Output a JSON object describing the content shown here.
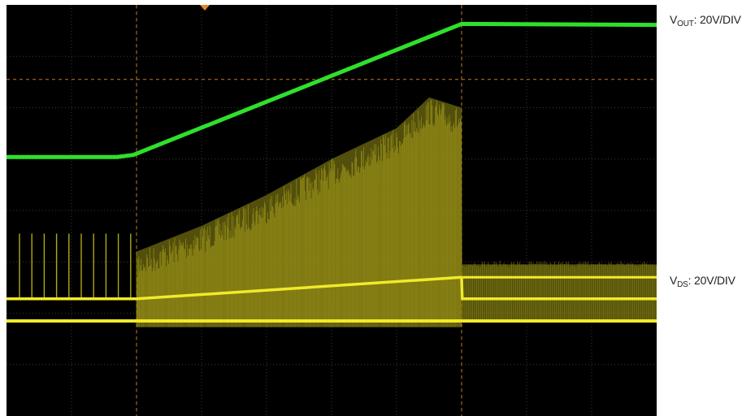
{
  "labels": {
    "vout": {
      "name": "V",
      "sub": "OUT",
      "scale": ": 20V/DIV"
    },
    "vds": {
      "name": "V",
      "sub": "DS",
      "scale": ": 20V/DIV"
    }
  },
  "colors": {
    "background": "#000000",
    "grid": "#3a3a3a",
    "cursor": "#c8791e",
    "trigger_marker": "#e08a2a",
    "vout_trace": "#2fe02a",
    "vds_trace": "#f0ea2a",
    "vds_envelope": "#6e6a10"
  },
  "chart_data": {
    "type": "line",
    "grid": {
      "x_divisions": 10,
      "y_divisions": 8,
      "on": true
    },
    "vertical_scale": "20V/DIV",
    "x_range": [
      0,
      10
    ],
    "y_range": [
      0,
      8
    ],
    "cursors": {
      "vertical_div": [
        2.0,
        7.0
      ],
      "horizontal_div": [
        6.55,
        1.85
      ]
    },
    "trigger_marker_div": 3.05,
    "series": [
      {
        "name": "VOUT",
        "x": [
          0,
          1.7,
          1.95,
          7.0,
          10
        ],
        "y": [
          5.04,
          5.04,
          5.08,
          7.63,
          7.61
        ]
      },
      {
        "name": "VDS",
        "x": [
          0,
          2.0,
          7.0,
          7.01,
          10
        ],
        "y": [
          2.28,
          2.28,
          2.7,
          2.28,
          2.28
        ]
      },
      {
        "name": "VDS low rail",
        "x": [
          0,
          2.0,
          7.0,
          10
        ],
        "y": [
          1.85,
          1.85,
          1.85,
          1.85
        ]
      },
      {
        "name": "VDS switching envelope",
        "x": [
          2.0,
          3.0,
          4.0,
          5.0,
          6.0,
          6.5,
          7.0,
          7.01,
          10
        ],
        "y": [
          3.2,
          3.7,
          4.3,
          5.0,
          5.6,
          6.2,
          6.0,
          2.95,
          2.95
        ]
      }
    ]
  }
}
